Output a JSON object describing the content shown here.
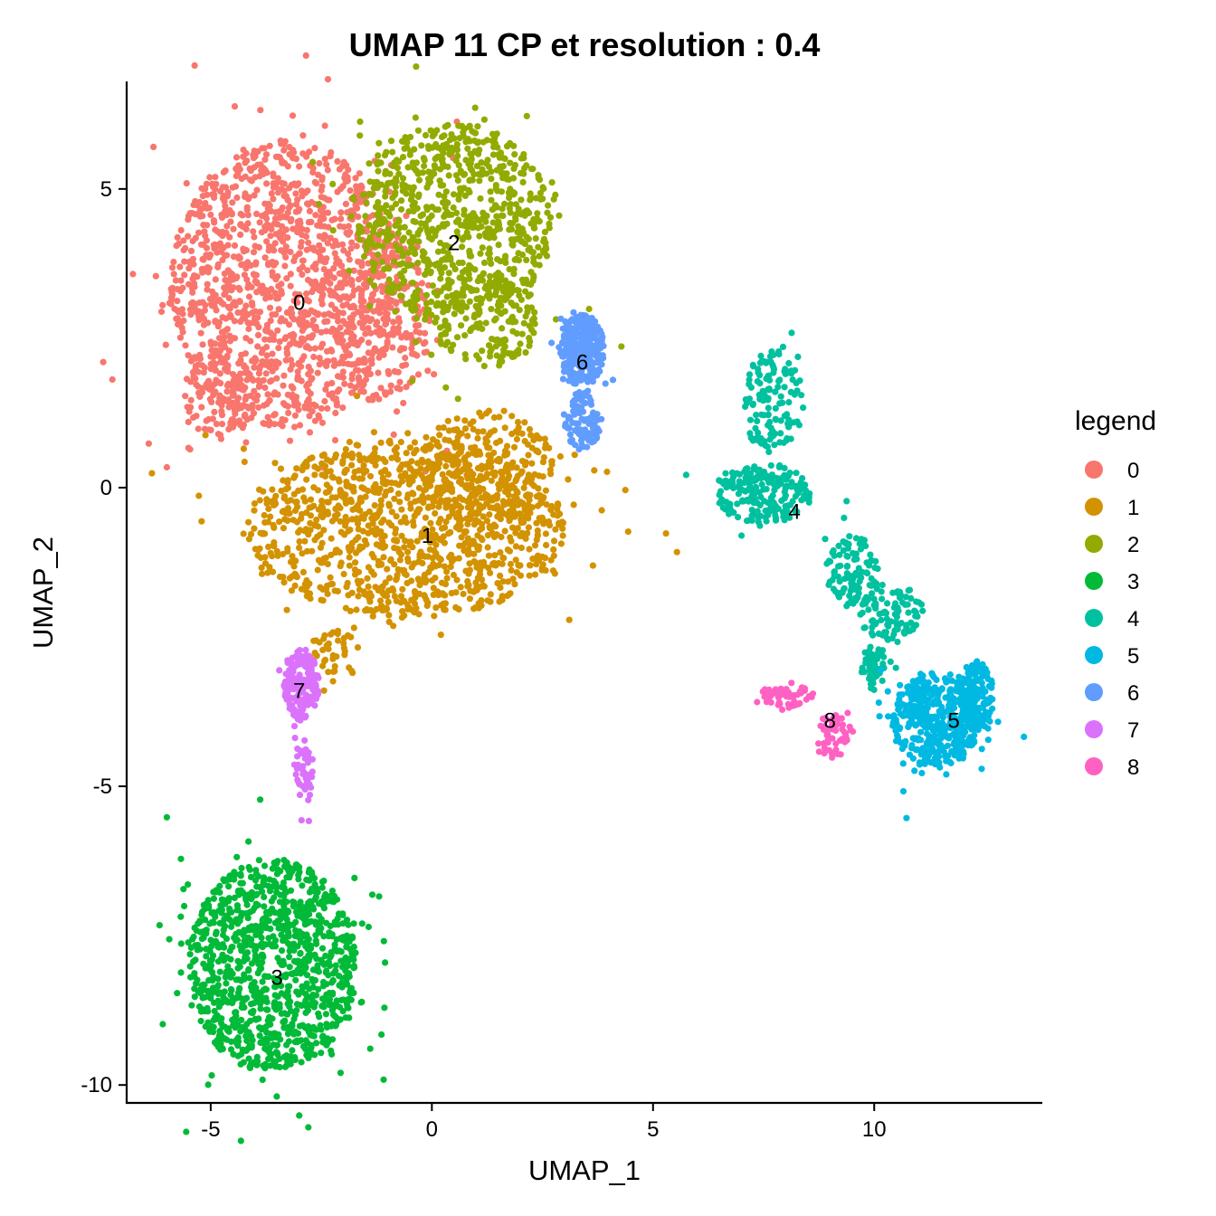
{
  "chart_data": {
    "type": "scatter",
    "title": "UMAP 11 CP et resolution : 0.4",
    "xlabel": "UMAP_1",
    "ylabel": "UMAP_2",
    "xlim": [
      -6.9,
      13.8
    ],
    "ylim": [
      -10.3,
      6.8
    ],
    "xticks": [
      -5,
      0,
      5,
      10
    ],
    "yticks": [
      -10,
      -5,
      0,
      5
    ],
    "grid": false,
    "legend": {
      "title": "legend",
      "position": "right"
    },
    "clusters": [
      {
        "name": "0",
        "color": "#F8766D",
        "label": "0",
        "label_x": -3.0,
        "label_y": 3.1,
        "regions": [
          {
            "cx": -3.3,
            "cy": 3.4,
            "rx": 2.6,
            "ry": 2.4,
            "n": 1300
          },
          {
            "cx": -4.8,
            "cy": 1.6,
            "rx": 0.8,
            "ry": 0.8,
            "n": 120
          },
          {
            "cx": -1.0,
            "cy": 2.8,
            "rx": 1.2,
            "ry": 1.5,
            "n": 200
          }
        ]
      },
      {
        "name": "1",
        "color": "#D39200",
        "label": "1",
        "label_x": -0.1,
        "label_y": -0.8,
        "regions": [
          {
            "cx": -0.6,
            "cy": -0.7,
            "rx": 3.6,
            "ry": 1.5,
            "n": 1100
          },
          {
            "cx": 1.2,
            "cy": 0.3,
            "rx": 1.6,
            "ry": 1.0,
            "n": 250
          },
          {
            "cx": -2.2,
            "cy": -2.8,
            "rx": 0.6,
            "ry": 0.5,
            "n": 40
          }
        ]
      },
      {
        "name": "2",
        "color": "#93AA00",
        "label": "2",
        "label_x": 0.5,
        "label_y": 4.1,
        "regions": [
          {
            "cx": 0.5,
            "cy": 4.4,
            "rx": 2.2,
            "ry": 1.7,
            "n": 800
          },
          {
            "cx": 1.2,
            "cy": 2.8,
            "rx": 1.2,
            "ry": 0.8,
            "n": 150
          }
        ]
      },
      {
        "name": "3",
        "color": "#00BA38",
        "label": "3",
        "label_x": -3.5,
        "label_y": -8.2,
        "regions": [
          {
            "cx": -3.6,
            "cy": -8.0,
            "rx": 1.9,
            "ry": 1.8,
            "n": 1100
          }
        ]
      },
      {
        "name": "4",
        "color": "#00C19F",
        "label": "4",
        "label_x": 8.2,
        "label_y": -0.4,
        "regions": [
          {
            "cx": 7.7,
            "cy": 1.4,
            "rx": 0.7,
            "ry": 0.9,
            "n": 130
          },
          {
            "cx": 7.5,
            "cy": -0.1,
            "rx": 1.1,
            "ry": 0.5,
            "n": 200
          },
          {
            "cx": 9.5,
            "cy": -1.4,
            "rx": 0.6,
            "ry": 0.6,
            "n": 110
          },
          {
            "cx": 10.4,
            "cy": -2.1,
            "rx": 0.7,
            "ry": 0.5,
            "n": 90
          },
          {
            "cx": 10.0,
            "cy": -3.0,
            "rx": 0.3,
            "ry": 0.4,
            "n": 50
          }
        ]
      },
      {
        "name": "5",
        "color": "#00B9E3",
        "label": "5",
        "label_x": 11.8,
        "label_y": -3.9,
        "regions": [
          {
            "cx": 11.4,
            "cy": -3.9,
            "rx": 1.0,
            "ry": 0.8,
            "n": 420
          },
          {
            "cx": 12.3,
            "cy": -3.5,
            "rx": 0.4,
            "ry": 0.6,
            "n": 160
          }
        ]
      },
      {
        "name": "6",
        "color": "#619CFF",
        "label": "6",
        "label_x": 3.4,
        "label_y": 2.1,
        "regions": [
          {
            "cx": 3.4,
            "cy": 2.3,
            "rx": 0.5,
            "ry": 0.6,
            "n": 300
          },
          {
            "cx": 3.4,
            "cy": 1.1,
            "rx": 0.4,
            "ry": 0.5,
            "n": 100
          }
        ]
      },
      {
        "name": "7",
        "color": "#DB72FB",
        "label": "7",
        "label_x": -3.0,
        "label_y": -3.4,
        "regions": [
          {
            "cx": -2.95,
            "cy": -3.3,
            "rx": 0.4,
            "ry": 0.6,
            "n": 180
          },
          {
            "cx": -2.9,
            "cy": -4.8,
            "rx": 0.2,
            "ry": 0.6,
            "n": 50
          }
        ]
      },
      {
        "name": "8",
        "color": "#FF61C3",
        "label": "8",
        "label_x": 9.0,
        "label_y": -3.9,
        "regions": [
          {
            "cx": 8.0,
            "cy": -3.5,
            "rx": 0.6,
            "ry": 0.2,
            "n": 50
          },
          {
            "cx": 9.1,
            "cy": -4.2,
            "rx": 0.4,
            "ry": 0.4,
            "n": 60
          }
        ]
      }
    ]
  }
}
